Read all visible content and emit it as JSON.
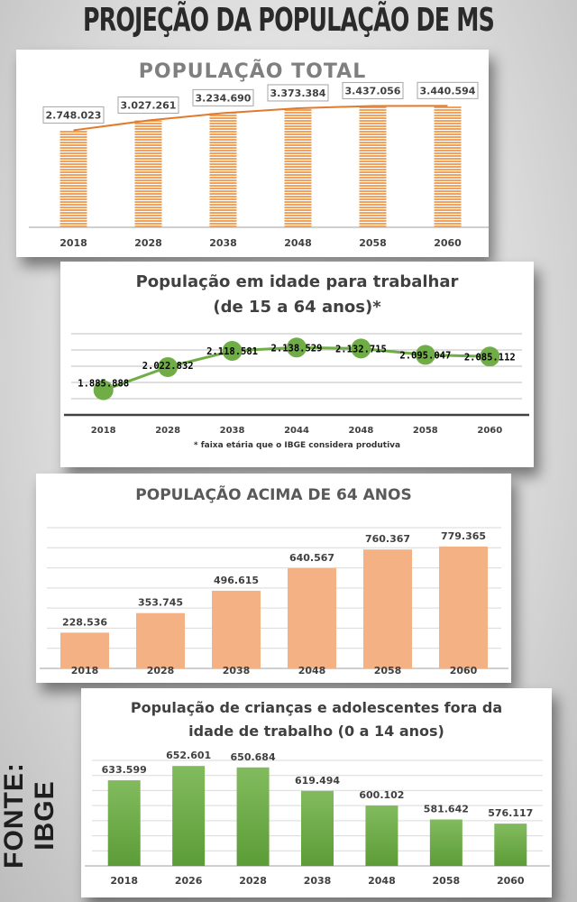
{
  "title": "PROJEÇÃO DA POPULAÇÃO DE MS",
  "source": "FONTE: IBGE",
  "chart_data": [
    {
      "type": "bar",
      "title": "POPULAÇÃO TOTAL",
      "categories": [
        "2018",
        "2028",
        "2038",
        "2048",
        "2058",
        "2060"
      ],
      "values": [
        2748023,
        3027261,
        3234690,
        3373384,
        3437056,
        3440594
      ],
      "labels": [
        "2.748.023",
        "3.027.261",
        "3.234.690",
        "3.373.384",
        "3.437.056",
        "3.440.594"
      ],
      "trendline": true,
      "ylim": [
        0,
        3500000
      ],
      "grid": false,
      "color": "#f0a35e"
    },
    {
      "type": "line",
      "title": "População em idade para trabalhar",
      "subtitle": "(de 15 a 64 anos)*",
      "categories": [
        "2018",
        "2028",
        "2038",
        "2044",
        "2048",
        "2058",
        "2060"
      ],
      "values": [
        1885888,
        2022832,
        2118581,
        2138529,
        2132715,
        2095047,
        2085112
      ],
      "labels": [
        "1.885.888",
        "2.022.832",
        "2.118.581",
        "2.138.529",
        "2.132.715",
        "2.095.047",
        "2.085.112"
      ],
      "footnote": "* faixa etária que o IBGE considera produtiva",
      "ylim": [
        1740000,
        2220000
      ],
      "grid": true,
      "color": "#70ad47"
    },
    {
      "type": "bar",
      "title": "POPULAÇÃO ACIMA DE 64 ANOS",
      "categories": [
        "2018",
        "2028",
        "2038",
        "2048",
        "2058",
        "2060"
      ],
      "values": [
        228536,
        353745,
        496615,
        640567,
        760367,
        779365
      ],
      "labels": [
        "228.536",
        "353.745",
        "496.615",
        "640.567",
        "760.367",
        "779.365"
      ],
      "ylim": [
        0,
        900000
      ],
      "grid": true,
      "color": "#f4b183"
    },
    {
      "type": "bar",
      "title": "População de crianças e adolescentes fora da",
      "subtitle": "idade de trabalho (0 a 14 anos)",
      "categories": [
        "2018",
        "2026",
        "2028",
        "2038",
        "2048",
        "2058",
        "2060"
      ],
      "values": [
        633599,
        652601,
        650684,
        619494,
        600102,
        581642,
        576117
      ],
      "labels": [
        "633.599",
        "652.601",
        "650.684",
        "619.494",
        "600.102",
        "581.642",
        "576.117"
      ],
      "ylim": [
        520000,
        660000
      ],
      "grid": true,
      "color": "#6aaa45"
    }
  ]
}
